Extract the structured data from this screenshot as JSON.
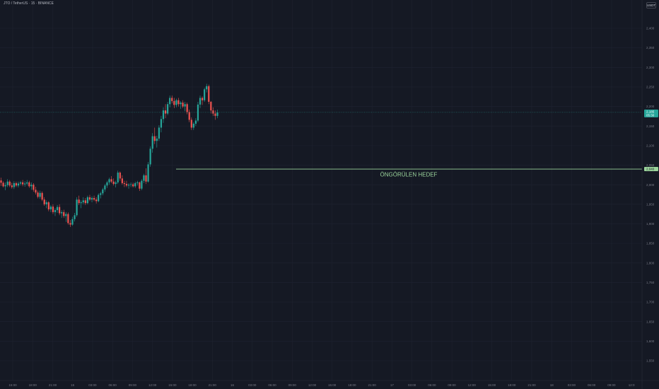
{
  "symbol_title": "JTO / TetherUS · 15 · BINANCE",
  "currency": "USDT",
  "colors": {
    "background": "#151924",
    "grid": "#1f2330",
    "up": "#26a69a",
    "down": "#ef5350",
    "target_line": "#9bd49b",
    "axis_text": "#787b86",
    "price_badge": "#26a69a"
  },
  "chart_data": {
    "type": "candlestick",
    "y_ticks": [
      "2,400",
      "2,350",
      "2,300",
      "2,250",
      "2,200",
      "2,150",
      "2,100",
      "2,050",
      "2,000",
      "1,950",
      "1,900",
      "1,850",
      "1,800",
      "1,750",
      "1,700",
      "1,650",
      "1,600",
      "1,550"
    ],
    "x_ticks": [
      "15:00",
      "18:00",
      "21:00",
      "15",
      "03:00",
      "06:00",
      "09:00",
      "12:00",
      "15:00",
      "18:00",
      "21:00",
      "16",
      "03:00",
      "06:00",
      "09:00",
      "12:00",
      "15:00",
      "18:00",
      "21:00",
      "17",
      "03:00",
      "06:00",
      "09:00",
      "12:00",
      "15:00",
      "18:00",
      "21:00",
      "18",
      "03:00",
      "06:00",
      "09:00",
      "12:0"
    ],
    "ylim": [
      1.52,
      2.455
    ],
    "last_price": {
      "value": 2.185,
      "label": "2,185",
      "countdown": "05:30"
    },
    "target": {
      "value": 2.04,
      "label": "2,040",
      "text": "ÖNGÖRÜLEN HEDEF"
    },
    "candles": [
      [
        2.011,
        2.018,
        1.997,
        2.005
      ],
      [
        2.005,
        2.009,
        1.993,
        1.996
      ],
      [
        1.996,
        2.006,
        1.986,
        1.999
      ],
      [
        1.999,
        2.014,
        1.994,
        2.008
      ],
      [
        2.008,
        2.012,
        1.994,
        1.998
      ],
      [
        1.998,
        2.005,
        1.99,
        1.994
      ],
      [
        1.994,
        2.009,
        1.989,
        2.004
      ],
      [
        2.004,
        2.008,
        1.994,
        1.998
      ],
      [
        1.998,
        2.008,
        1.993,
        2.003
      ],
      [
        2.003,
        2.01,
        1.998,
        2.006
      ],
      [
        2.006,
        2.012,
        1.996,
        2.001
      ],
      [
        2.001,
        2.009,
        1.995,
        2.003
      ],
      [
        2.003,
        2.012,
        1.998,
        2.006
      ],
      [
        2.006,
        2.01,
        1.992,
        1.996
      ],
      [
        1.996,
        2.006,
        1.987,
        2.0
      ],
      [
        2.0,
        2.004,
        1.982,
        1.987
      ],
      [
        1.987,
        1.995,
        1.975,
        1.98
      ],
      [
        1.98,
        1.985,
        1.965,
        1.969
      ],
      [
        1.969,
        1.985,
        1.964,
        1.979
      ],
      [
        1.979,
        1.983,
        1.958,
        1.962
      ],
      [
        1.962,
        1.968,
        1.946,
        1.95
      ],
      [
        1.95,
        1.96,
        1.94,
        1.955
      ],
      [
        1.955,
        1.958,
        1.932,
        1.937
      ],
      [
        1.937,
        1.948,
        1.93,
        1.944
      ],
      [
        1.944,
        1.95,
        1.925,
        1.93
      ],
      [
        1.93,
        1.94,
        1.92,
        1.935
      ],
      [
        1.935,
        1.948,
        1.928,
        1.943
      ],
      [
        1.943,
        1.95,
        1.922,
        1.927
      ],
      [
        1.927,
        1.935,
        1.915,
        1.93
      ],
      [
        1.93,
        1.936,
        1.915,
        1.92
      ],
      [
        1.92,
        1.93,
        1.905,
        1.925
      ],
      [
        1.925,
        1.929,
        1.898,
        1.902
      ],
      [
        1.902,
        1.91,
        1.892,
        1.898
      ],
      [
        1.898,
        1.918,
        1.895,
        1.912
      ],
      [
        1.912,
        1.928,
        1.906,
        1.922
      ],
      [
        1.922,
        1.968,
        1.918,
        1.962
      ],
      [
        1.962,
        1.972,
        1.948,
        1.953
      ],
      [
        1.953,
        1.96,
        1.94,
        1.955
      ],
      [
        1.955,
        1.968,
        1.95,
        1.96
      ],
      [
        1.96,
        1.966,
        1.948,
        1.953
      ],
      [
        1.953,
        1.972,
        1.95,
        1.968
      ],
      [
        1.968,
        1.974,
        1.958,
        1.962
      ],
      [
        1.962,
        1.97,
        1.955,
        1.966
      ],
      [
        1.966,
        1.972,
        1.958,
        1.962
      ],
      [
        1.962,
        1.968,
        1.952,
        1.958
      ],
      [
        1.958,
        1.978,
        1.955,
        1.974
      ],
      [
        1.974,
        1.982,
        1.965,
        1.978
      ],
      [
        1.978,
        1.992,
        1.973,
        1.988
      ],
      [
        1.988,
        2.002,
        1.982,
        1.998
      ],
      [
        1.998,
        2.01,
        1.992,
        2.006
      ],
      [
        2.006,
        2.018,
        2.0,
        2.014
      ],
      [
        2.014,
        2.022,
        2.004,
        2.008
      ],
      [
        2.008,
        2.016,
        1.998,
        2.002
      ],
      [
        2.002,
        2.01,
        1.993,
        2.006
      ],
      [
        2.006,
        2.036,
        2.002,
        2.031
      ],
      [
        2.031,
        2.034,
        2.01,
        2.016
      ],
      [
        2.016,
        2.024,
        2.0,
        2.004
      ],
      [
        2.004,
        2.01,
        1.994,
        2.002
      ],
      [
        2.002,
        2.01,
        1.994,
        1.998
      ],
      [
        1.998,
        2.004,
        1.99,
        2.0
      ],
      [
        2.0,
        2.006,
        1.994,
        2.001
      ],
      [
        2.001,
        2.005,
        1.993,
        1.996
      ],
      [
        1.996,
        2.008,
        1.992,
        2.004
      ],
      [
        2.004,
        2.01,
        1.998,
        2.006
      ],
      [
        2.006,
        2.008,
        1.984,
        1.99
      ],
      [
        1.99,
        2.014,
        1.986,
        2.01
      ],
      [
        2.01,
        2.028,
        2.004,
        2.024
      ],
      [
        2.024,
        2.042,
        2.002,
        2.008
      ],
      [
        2.008,
        2.058,
        2.005,
        2.052
      ],
      [
        2.052,
        2.098,
        2.046,
        2.092
      ],
      [
        2.092,
        2.132,
        2.082,
        2.124
      ],
      [
        2.124,
        2.146,
        2.104,
        2.112
      ],
      [
        2.112,
        2.125,
        2.095,
        2.118
      ],
      [
        2.118,
        2.152,
        2.112,
        2.146
      ],
      [
        2.146,
        2.176,
        2.134,
        2.168
      ],
      [
        2.168,
        2.198,
        2.158,
        2.19
      ],
      [
        2.19,
        2.206,
        2.17,
        2.182
      ],
      [
        2.182,
        2.212,
        2.178,
        2.206
      ],
      [
        2.206,
        2.228,
        2.198,
        2.222
      ],
      [
        2.222,
        2.228,
        2.208,
        2.214
      ],
      [
        2.214,
        2.222,
        2.196,
        2.204
      ],
      [
        2.204,
        2.22,
        2.198,
        2.216
      ],
      [
        2.216,
        2.222,
        2.2,
        2.206
      ],
      [
        2.206,
        2.214,
        2.194,
        2.21
      ],
      [
        2.21,
        2.216,
        2.196,
        2.2
      ],
      [
        2.2,
        2.212,
        2.188,
        2.206
      ],
      [
        2.206,
        2.21,
        2.18,
        2.186
      ],
      [
        2.186,
        2.192,
        2.16,
        2.166
      ],
      [
        2.166,
        2.172,
        2.14,
        2.146
      ],
      [
        2.146,
        2.16,
        2.14,
        2.156
      ],
      [
        2.156,
        2.17,
        2.15,
        2.164
      ],
      [
        2.164,
        2.212,
        2.16,
        2.205
      ],
      [
        2.205,
        2.228,
        2.196,
        2.222
      ],
      [
        2.222,
        2.226,
        2.204,
        2.216
      ],
      [
        2.216,
        2.248,
        2.212,
        2.244
      ],
      [
        2.244,
        2.258,
        2.236,
        2.252
      ],
      [
        2.252,
        2.256,
        2.206,
        2.212
      ],
      [
        2.212,
        2.214,
        2.182,
        2.19
      ],
      [
        2.19,
        2.198,
        2.176,
        2.182
      ],
      [
        2.182,
        2.19,
        2.166,
        2.176
      ],
      [
        2.176,
        2.192,
        2.17,
        2.185
      ]
    ]
  }
}
